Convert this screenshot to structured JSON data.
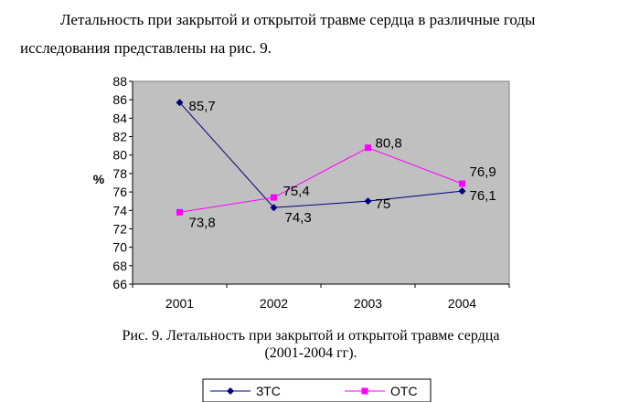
{
  "intro_text": "Летальность при закрытой и открытой травме сердца в различные годы исследования представлены на рис. 9.",
  "caption": {
    "line1": "Рис. 9.  Летальность при закрытой и открытой травме сердца",
    "line2": "(2001-2004 гг)."
  },
  "chart_data": {
    "type": "line",
    "title": "",
    "xlabel": "",
    "ylabel": "%",
    "categories": [
      "2001",
      "2002",
      "2003",
      "2004"
    ],
    "ylim": [
      66,
      88
    ],
    "y_ticks": [
      66,
      68,
      70,
      72,
      74,
      76,
      78,
      80,
      82,
      84,
      86,
      88
    ],
    "grid": false,
    "plot_background": "#c0c0c0",
    "legend_position": "bottom",
    "series": [
      {
        "name": "ЗТС",
        "color": "#000080",
        "marker": "diamond",
        "values": [
          85.7,
          74.3,
          75,
          76.1
        ],
        "labels": [
          "85,7",
          "74,3",
          "75",
          "76,1"
        ]
      },
      {
        "name": "ОТС",
        "color": "#ff00ff",
        "marker": "square",
        "values": [
          73.8,
          75.4,
          80.8,
          76.9
        ],
        "labels": [
          "73,8",
          "75,4",
          "80,8",
          "76,9"
        ]
      }
    ]
  }
}
